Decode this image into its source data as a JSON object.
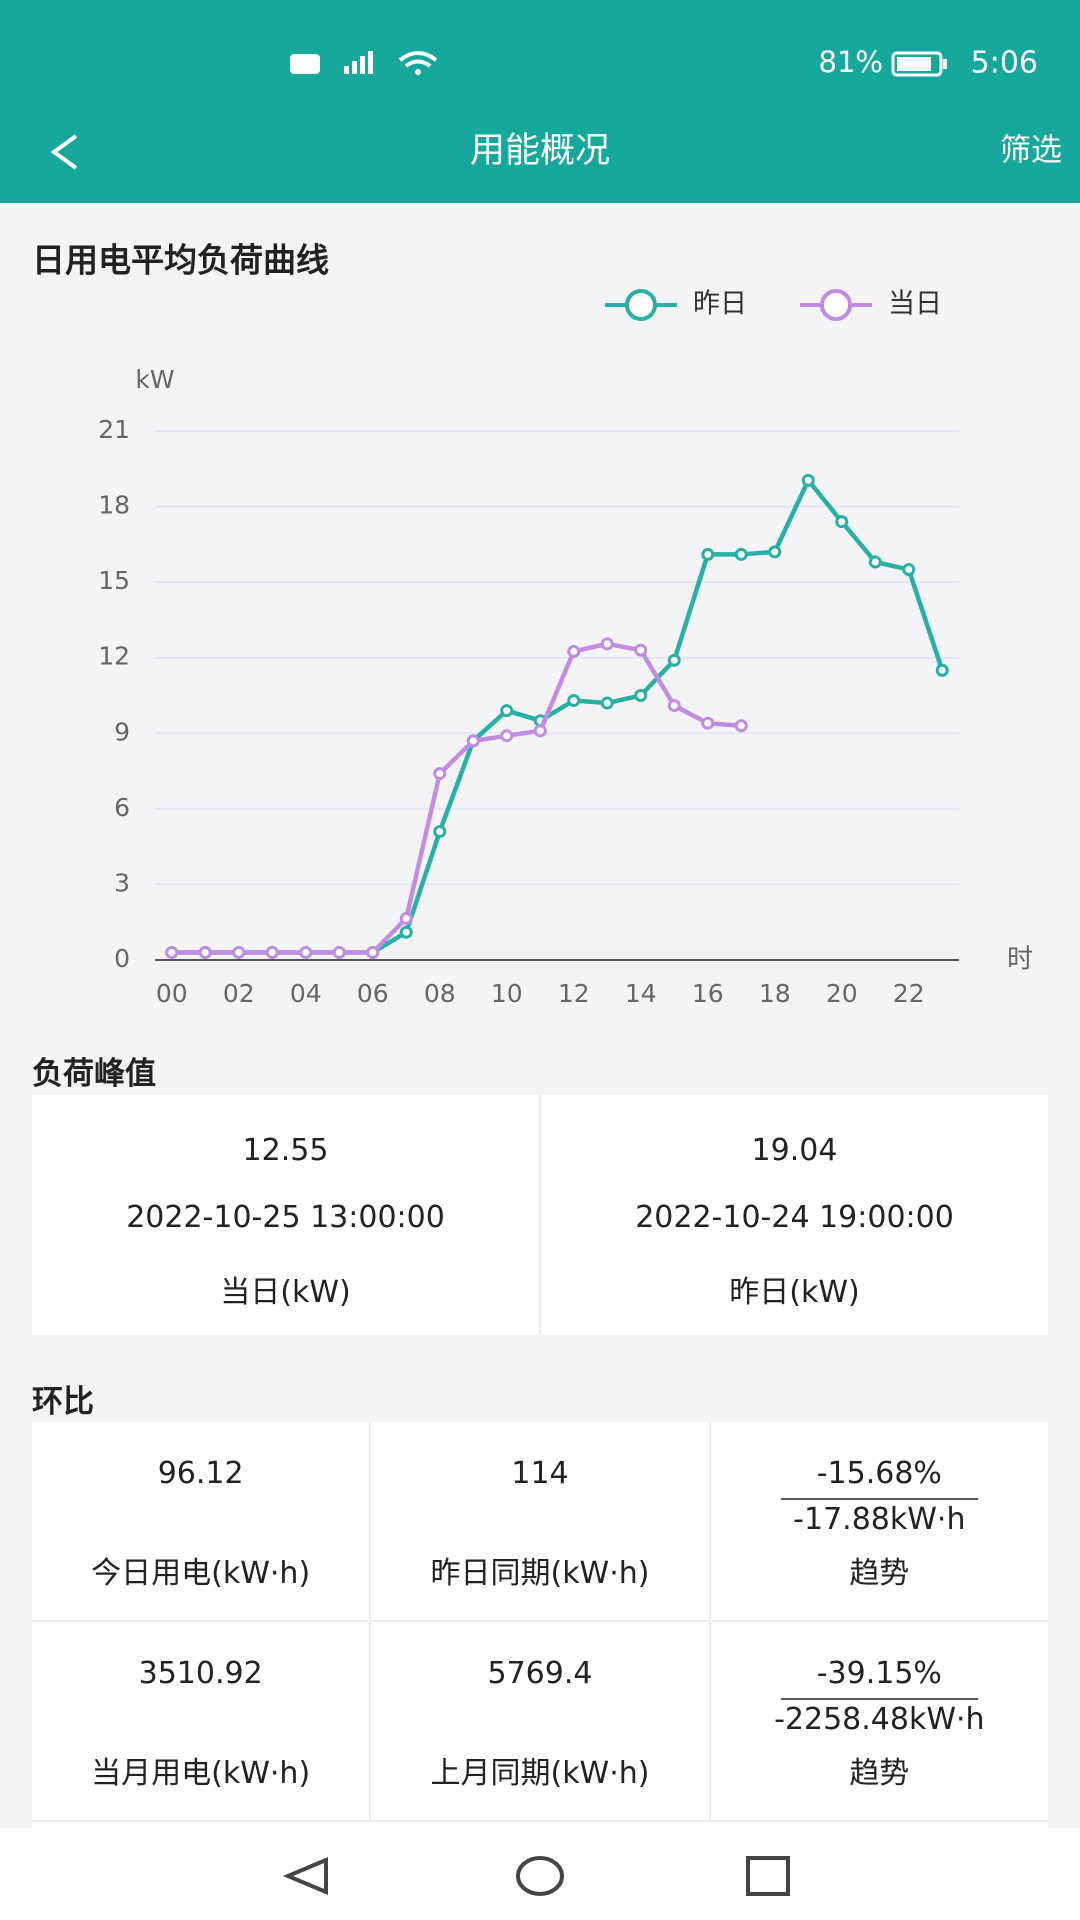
{
  "status_bar": {
    "battery": "81%",
    "time": "5:06"
  },
  "header": {
    "title": "用能概况",
    "action": "筛选"
  },
  "chart_data": {
    "type": "line",
    "title": "日用电平均负荷曲线",
    "y_label": "kW",
    "x_label": "时",
    "categories": [
      "00",
      null,
      "02",
      null,
      "04",
      null,
      "06",
      null,
      "08",
      null,
      "10",
      null,
      "12",
      null,
      "14",
      null,
      "16",
      null,
      "18",
      null,
      "20",
      null,
      "22",
      null
    ],
    "series": [
      {
        "name": "昨日",
        "color": "#27b0a6",
        "values": [
          0.3,
          0.3,
          0.3,
          0.3,
          0.3,
          0.3,
          0.3,
          1.1,
          5.1,
          8.7,
          9.9,
          9.5,
          10.3,
          10.2,
          10.5,
          11.9,
          16.1,
          16.1,
          16.2,
          19.04,
          17.4,
          15.8,
          15.5,
          11.5
        ]
      },
      {
        "name": "当日",
        "color": "#c18de2",
        "values": [
          0.3,
          0.3,
          0.3,
          0.3,
          0.3,
          0.3,
          0.3,
          1.65,
          7.4,
          8.7,
          8.9,
          9.1,
          12.25,
          12.55,
          12.3,
          10.1,
          9.4,
          9.3,
          null,
          null,
          null,
          null,
          null,
          null
        ]
      }
    ],
    "ylim": [
      0,
      21
    ],
    "yticks": [
      0,
      3,
      6,
      9,
      12,
      15,
      18,
      21
    ],
    "grid": true,
    "legend": "top-right"
  },
  "peak": {
    "title": "负荷峰值",
    "items": [
      {
        "value": "12.55",
        "time": "2022-10-25 13:00:00",
        "label": "当日(kW)"
      },
      {
        "value": "19.04",
        "time": "2022-10-24 19:00:00",
        "label": "昨日(kW)"
      }
    ]
  },
  "comparison": {
    "title": "环比",
    "rows": [
      [
        {
          "value": "96.12",
          "label": "今日用电(kW·h)"
        },
        {
          "value": "114",
          "label": "昨日同期(kW·h)"
        },
        {
          "percent": "-15.68%",
          "amount": "-17.88kW·h",
          "label": "趋势"
        }
      ],
      [
        {
          "value": "3510.92",
          "label": "当月用电(kW·h)"
        },
        {
          "value": "5769.4",
          "label": "上月同期(kW·h)"
        },
        {
          "percent": "-39.15%",
          "amount": "-2258.48kW·h",
          "label": "趋势"
        }
      ]
    ]
  }
}
